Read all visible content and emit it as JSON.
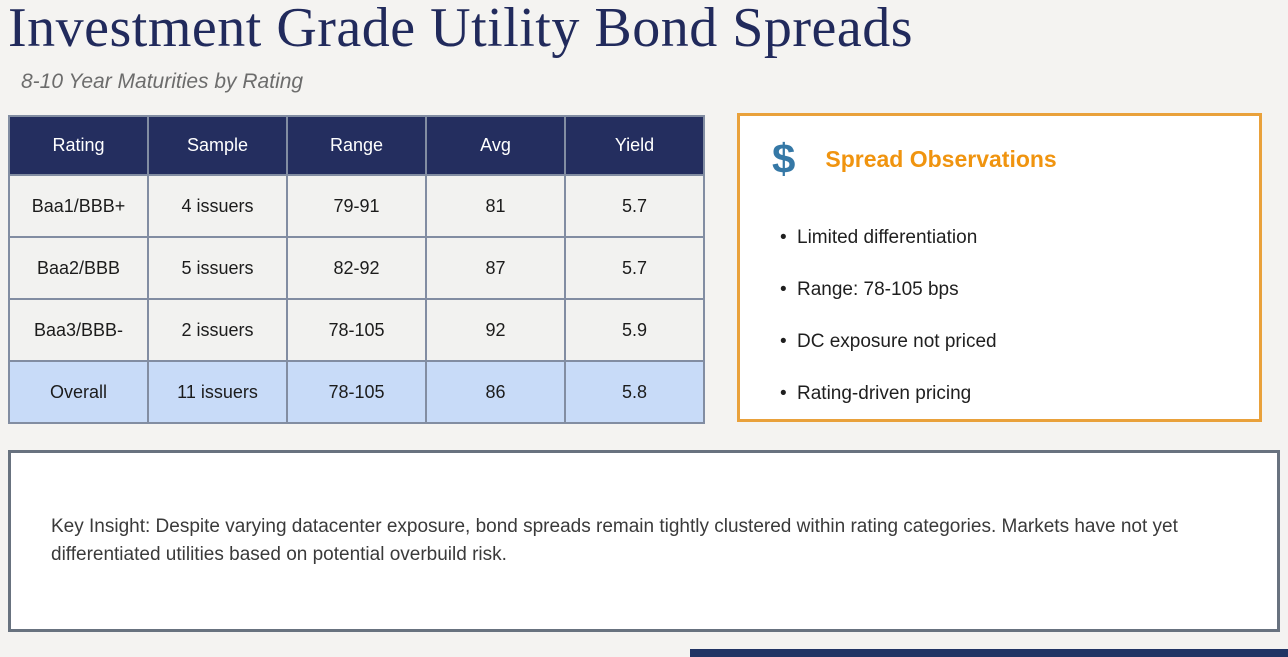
{
  "page": {
    "title": "Investment Grade Utility Bond Spreads",
    "subtitle": "8-10 Year Maturities by Rating"
  },
  "table": {
    "headers": [
      "Rating",
      "Sample",
      "Range",
      "Avg",
      "Yield"
    ],
    "rows": [
      {
        "rating": "Baa1/BBB+",
        "sample": "4 issuers",
        "range": "79-91",
        "avg": "81",
        "yield": "5.7"
      },
      {
        "rating": "Baa2/BBB",
        "sample": "5 issuers",
        "range": "82-92",
        "avg": "87",
        "yield": "5.7"
      },
      {
        "rating": "Baa3/BBB-",
        "sample": "2 issuers",
        "range": "78-105",
        "avg": "92",
        "yield": "5.9"
      },
      {
        "rating": "Overall",
        "sample": "11 issuers",
        "range": "78-105",
        "avg": "86",
        "yield": "5.8"
      }
    ]
  },
  "observations": {
    "icon": "dollar-icon",
    "icon_glyph": "$",
    "title": "Spread Observations",
    "bullets": [
      "Limited differentiation",
      "Range: 78-105 bps",
      "DC exposure not priced",
      "Rating-driven pricing"
    ]
  },
  "key_insight": {
    "text": "Key Insight: Despite varying datacenter exposure, bond spreads remain tightly clustered within rating categories. Markets have not yet differentiated utilities based on potential overbuild risk."
  },
  "colors": {
    "background": "#F4F3F1",
    "title_navy": "#212A5C",
    "table_header_navy": "#242E5F",
    "table_border": "#828DA2",
    "row_bg": "#F2F2F0",
    "overall_row_blue": "#C8DBF8",
    "accent_orange": "#E9A13B",
    "heading_orange": "#F0940F",
    "dollar_blue": "#3578A6",
    "insight_border": "#68727F",
    "bottom_bar_navy": "#213464"
  }
}
